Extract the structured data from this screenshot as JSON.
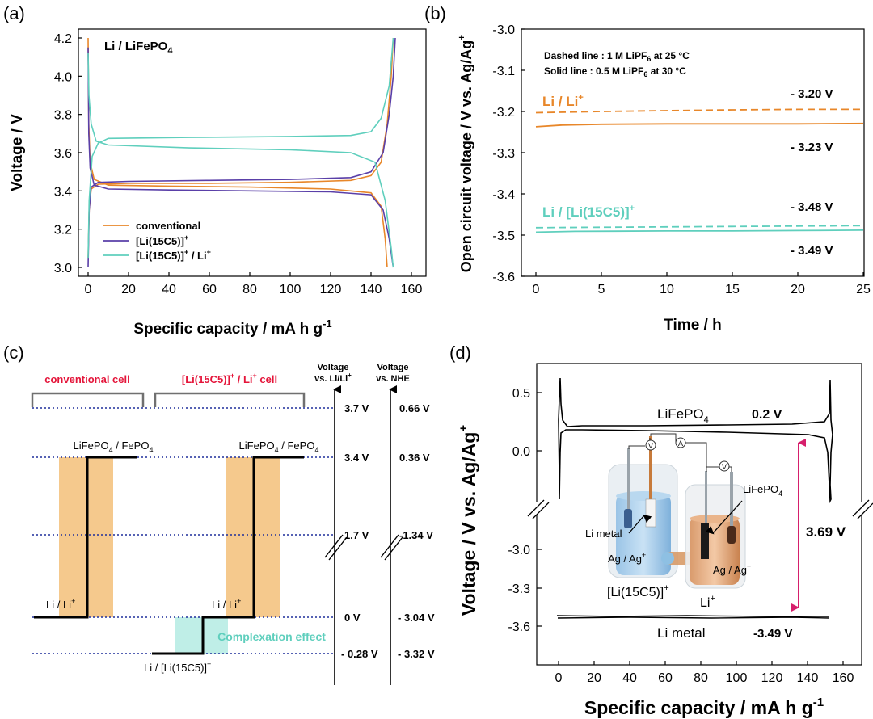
{
  "colors": {
    "orange": "#e8872a",
    "purple": "#5a3fa8",
    "teal": "#5fcfbd",
    "crimson": "#e4153a",
    "navy": "#1f2f9c",
    "magenta": "#d61f6c",
    "band": "#f5c98d",
    "teal_band": "#bfeee7",
    "bracket": "#707070"
  },
  "chart_data": [
    {
      "panel": "(a)",
      "type": "line",
      "title": "Li / LiFePO4",
      "xlabel": "Specific capacity / mA h g-1",
      "ylabel": "Voltage / V",
      "xlim": [
        -5,
        160
      ],
      "ylim": [
        2.95,
        4.25
      ],
      "xticks": [
        "0",
        "20",
        "40",
        "60",
        "80",
        "100",
        "120",
        "140",
        "160"
      ],
      "yticks": [
        "3.0",
        "3.2",
        "3.4",
        "3.6",
        "3.8",
        "4.0",
        "4.2"
      ],
      "legend": [
        "conventional",
        "[Li(15C5)]+",
        "[Li(15C5)]+ / Li+"
      ],
      "series": [
        {
          "name": "conventional",
          "color": "orange",
          "charge": [
            [
              0,
              3.05
            ],
            [
              0.5,
              3.3
            ],
            [
              1.5,
              3.41
            ],
            [
              5,
              3.435
            ],
            [
              20,
              3.44
            ],
            [
              60,
              3.44
            ],
            [
              100,
              3.445
            ],
            [
              130,
              3.455
            ],
            [
              140,
              3.48
            ],
            [
              145,
              3.55
            ],
            [
              148,
              3.75
            ],
            [
              150,
              4.0
            ],
            [
              151,
              4.2
            ]
          ],
          "discharge": [
            [
              0,
              4.2
            ],
            [
              0.3,
              3.75
            ],
            [
              1,
              3.55
            ],
            [
              3,
              3.46
            ],
            [
              10,
              3.43
            ],
            [
              40,
              3.425
            ],
            [
              80,
              3.42
            ],
            [
              120,
              3.41
            ],
            [
              140,
              3.39
            ],
            [
              145,
              3.32
            ],
            [
              147,
              3.15
            ],
            [
              148,
              3.0
            ]
          ]
        },
        {
          "name": "[Li(15C5)]+",
          "color": "purple",
          "charge": [
            [
              0,
              3.0
            ],
            [
              0.5,
              3.3
            ],
            [
              1.5,
              3.42
            ],
            [
              5,
              3.445
            ],
            [
              20,
              3.45
            ],
            [
              60,
              3.455
            ],
            [
              100,
              3.46
            ],
            [
              130,
              3.47
            ],
            [
              140,
              3.5
            ],
            [
              146,
              3.6
            ],
            [
              149,
              3.8
            ],
            [
              151,
              4.0
            ],
            [
              152,
              4.2
            ]
          ],
          "discharge": [
            [
              0,
              4.15
            ],
            [
              0.3,
              3.7
            ],
            [
              1,
              3.52
            ],
            [
              3,
              3.43
            ],
            [
              10,
              3.41
            ],
            [
              40,
              3.405
            ],
            [
              80,
              3.4
            ],
            [
              120,
              3.395
            ],
            [
              140,
              3.38
            ],
            [
              146,
              3.3
            ],
            [
              149,
              3.15
            ],
            [
              151,
              3.0
            ]
          ]
        },
        {
          "name": "[Li(15C5)]+ / Li+",
          "color": "teal",
          "charge": [
            [
              0,
              3.05
            ],
            [
              0.5,
              3.35
            ],
            [
              2,
              3.58
            ],
            [
              5,
              3.65
            ],
            [
              10,
              3.675
            ],
            [
              50,
              3.68
            ],
            [
              100,
              3.685
            ],
            [
              130,
              3.69
            ],
            [
              140,
              3.71
            ],
            [
              145,
              3.78
            ],
            [
              149,
              3.95
            ],
            [
              151,
              4.2
            ]
          ],
          "discharge": [
            [
              0,
              4.12
            ],
            [
              0.4,
              3.9
            ],
            [
              1.5,
              3.75
            ],
            [
              4,
              3.66
            ],
            [
              10,
              3.64
            ],
            [
              50,
              3.625
            ],
            [
              100,
              3.615
            ],
            [
              130,
              3.6
            ],
            [
              142,
              3.55
            ],
            [
              147,
              3.35
            ],
            [
              150,
              3.1
            ],
            [
              151,
              3.0
            ]
          ]
        }
      ]
    },
    {
      "panel": "(b)",
      "type": "line",
      "xlabel": "Time / h",
      "ylabel": "Open circuit voltage / V vs. Ag/Ag+",
      "xlim": [
        -1,
        25
      ],
      "ylim": [
        -3.6,
        -3.0
      ],
      "xticks": [
        "0",
        "5",
        "10",
        "15",
        "20",
        "25"
      ],
      "yticks": [
        "-3.0",
        "-3.1",
        "-3.2",
        "-3.3",
        "-3.4",
        "-3.5",
        "-3.6"
      ],
      "note_dashed": "Dashed line : 1 M LiPF6 at 25 °C",
      "note_solid": "Solid line : 0.5 M LiPF6 at 30 °C",
      "series": [
        {
          "name": "Li / Li+ dashed",
          "color": "orange",
          "dash": true,
          "points": [
            [
              0,
              -3.203
            ],
            [
              5,
              -3.2
            ],
            [
              10,
              -3.198
            ],
            [
              15,
              -3.196
            ],
            [
              20,
              -3.195
            ],
            [
              25,
              -3.195
            ]
          ]
        },
        {
          "name": "Li / Li+ solid",
          "color": "orange",
          "dash": false,
          "points": [
            [
              0,
              -3.237
            ],
            [
              2,
              -3.233
            ],
            [
              5,
              -3.231
            ],
            [
              10,
              -3.23
            ],
            [
              15,
              -3.23
            ],
            [
              20,
              -3.23
            ],
            [
              25,
              -3.229
            ]
          ]
        },
        {
          "name": "Li / [Li(15C5)]+ dashed",
          "color": "teal",
          "dash": true,
          "points": [
            [
              0,
              -3.482
            ],
            [
              5,
              -3.481
            ],
            [
              10,
              -3.48
            ],
            [
              15,
              -3.479
            ],
            [
              20,
              -3.478
            ],
            [
              25,
              -3.477
            ]
          ]
        },
        {
          "name": "Li / [Li(15C5)]+ solid",
          "color": "teal",
          "dash": false,
          "points": [
            [
              0,
              -3.493
            ],
            [
              3,
              -3.491
            ],
            [
              10,
              -3.49
            ],
            [
              15,
              -3.49
            ],
            [
              20,
              -3.489
            ],
            [
              25,
              -3.488
            ]
          ]
        }
      ],
      "labels": {
        "li_li": "Li / Li+",
        "li_crown": "Li / [Li(15C5)]+",
        "v320": "- 3.20 V",
        "v323": "- 3.23 V",
        "v348": "- 3.48 V",
        "v349": "- 3.49 V"
      }
    },
    {
      "panel": "(c)",
      "type": "diagram",
      "header_conventional": "conventional cell",
      "header_crown": "[Li(15C5)]+ / Li+ cell",
      "axis1_title_line1": "Voltage",
      "axis1_title_line2": "vs. Li/Li+",
      "axis2_title_line1": "Voltage",
      "axis2_title_line2": "vs. NHE",
      "levels": [
        {
          "li": "3.7 V",
          "nhe": "0.66 V"
        },
        {
          "li": "3.4 V",
          "nhe": "0.36 V"
        },
        {
          "li": "1.7 V",
          "nhe": "-1.34 V"
        },
        {
          "li": "0 V",
          "nhe": "- 3.04 V"
        },
        {
          "li": "- 0.28 V",
          "nhe": "- 3.32 V"
        }
      ],
      "lfp_left": "LiFePO4 / FePO4",
      "lfp_right": "LiFePO4 / FePO4",
      "li_left": "Li / Li+",
      "li_right": "Li / Li+",
      "li_crown": "Li / [Li(15C5)]+",
      "complexation": "Complexation effect"
    },
    {
      "panel": "(d)",
      "type": "line",
      "xlabel": "Specific capacity / mA h g-1",
      "ylabel": "Voltage / V vs. Ag/Ag+",
      "xlim": [
        -8,
        165
      ],
      "xticks": [
        "0",
        "20",
        "40",
        "60",
        "80",
        "100",
        "120",
        "140",
        "160"
      ],
      "yticks_upper": [
        "0.5",
        "0.0"
      ],
      "yticks_lower": [
        "-3.0",
        "-3.3",
        "-3.6"
      ],
      "labels": {
        "lfp": "LiFePO4",
        "v02": "0.2 V",
        "gap": "3.69 V",
        "limetal": "Li metal",
        "v349": "-3.49 V",
        "inset_limetal": "Li metal",
        "inset_lfp": "LiFePO4",
        "inset_ag_left": "Ag / Ag+",
        "inset_ag_right": "Ag / Ag+",
        "inset_crown": "[Li(15C5)]+",
        "inset_li": "Li+",
        "meter_v": "V",
        "meter_a": "A"
      }
    }
  ],
  "panel_labels": [
    "(a)",
    "(b)",
    "(c)",
    "(d)"
  ]
}
